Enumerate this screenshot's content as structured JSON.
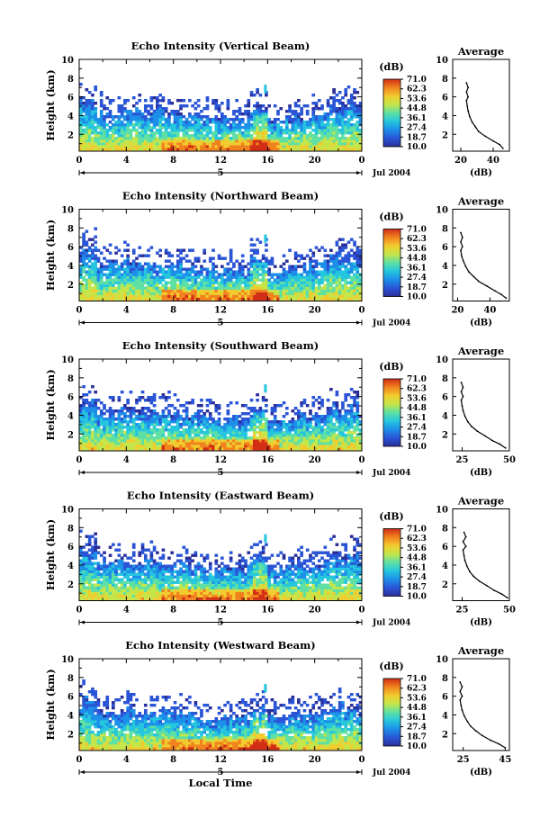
{
  "chart_data": [
    {
      "type": "heatmap",
      "title": "Echo Intensity (Vertical Beam)",
      "ylabel": "Height (km)",
      "xlabel": "",
      "x_ticks": [
        "0",
        "4",
        "8",
        "12",
        "16",
        "20",
        "0"
      ],
      "y_ticks": [
        "2",
        "4",
        "6",
        "8",
        "10"
      ],
      "xlim": [
        0,
        24
      ],
      "ylim": [
        0.2,
        10
      ],
      "day_marker": "5",
      "date_label": "Jul 2004",
      "colorbar": {
        "unit": "(dB)",
        "levels": [
          "71.0",
          "62.3",
          "53.6",
          "44.8",
          "36.1",
          "27.4",
          "18.7",
          "10.0"
        ]
      },
      "profile": {
        "title": "Average",
        "xlabel": "(dB)",
        "x_ticks": [
          "20",
          "40"
        ],
        "xlim": [
          15,
          50
        ],
        "y_ticks": [
          "2",
          "4",
          "6",
          "8",
          "10"
        ],
        "points": [
          [
            46,
            0.5
          ],
          [
            44,
            0.9
          ],
          [
            40,
            1.3
          ],
          [
            35,
            1.8
          ],
          [
            31,
            2.3
          ],
          [
            29,
            2.8
          ],
          [
            27,
            3.3
          ],
          [
            25.5,
            3.9
          ],
          [
            24.5,
            4.5
          ],
          [
            24,
            5.0
          ],
          [
            23.5,
            5.6
          ],
          [
            24.5,
            6.0
          ],
          [
            23.5,
            6.5
          ],
          [
            24.5,
            7.0
          ],
          [
            23.5,
            7.5
          ]
        ]
      }
    },
    {
      "type": "heatmap",
      "title": "Echo Intensity (Northward Beam)",
      "ylabel": "Height (km)",
      "xlabel": "",
      "x_ticks": [
        "0",
        "4",
        "8",
        "12",
        "16",
        "20",
        "0"
      ],
      "y_ticks": [
        "2",
        "4",
        "6",
        "8",
        "10"
      ],
      "xlim": [
        0,
        24
      ],
      "ylim": [
        0.2,
        10
      ],
      "day_marker": "5",
      "date_label": "Jul 2004",
      "colorbar": {
        "unit": "(dB)",
        "levels": [
          "71.0",
          "62.3",
          "53.6",
          "44.8",
          "36.1",
          "27.4",
          "18.7",
          "10.0"
        ]
      },
      "profile": {
        "title": "Average",
        "xlabel": "(dB)",
        "x_ticks": [
          "20",
          "40"
        ],
        "xlim": [
          17,
          52
        ],
        "y_ticks": [
          "2",
          "4",
          "6",
          "8",
          "10"
        ],
        "points": [
          [
            50,
            0.5
          ],
          [
            47,
            0.9
          ],
          [
            43,
            1.3
          ],
          [
            38,
            1.8
          ],
          [
            33,
            2.3
          ],
          [
            30,
            2.8
          ],
          [
            27,
            3.3
          ],
          [
            25,
            3.9
          ],
          [
            23.5,
            4.5
          ],
          [
            22.5,
            5.0
          ],
          [
            22,
            5.6
          ],
          [
            23,
            6.0
          ],
          [
            22,
            6.5
          ],
          [
            23,
            7.0
          ],
          [
            22,
            7.5
          ]
        ]
      }
    },
    {
      "type": "heatmap",
      "title": "Echo Intensity (Southward Beam)",
      "ylabel": "Height (km)",
      "xlabel": "",
      "x_ticks": [
        "0",
        "4",
        "8",
        "12",
        "16",
        "20",
        "0"
      ],
      "y_ticks": [
        "2",
        "4",
        "6",
        "8",
        "10"
      ],
      "xlim": [
        0,
        24
      ],
      "ylim": [
        0.2,
        10
      ],
      "day_marker": "5",
      "date_label": "Jul 2004",
      "colorbar": {
        "unit": "(dB)",
        "levels": [
          "71.0",
          "62.3",
          "53.6",
          "44.8",
          "36.1",
          "27.4",
          "18.7",
          "10.0"
        ]
      },
      "profile": {
        "title": "Average",
        "xlabel": "(dB)",
        "x_ticks": [
          "25",
          "50"
        ],
        "xlim": [
          20,
          50
        ],
        "y_ticks": [
          "2",
          "4",
          "6",
          "8",
          "10"
        ],
        "points": [
          [
            48,
            0.5
          ],
          [
            45,
            0.9
          ],
          [
            41,
            1.3
          ],
          [
            37,
            1.8
          ],
          [
            33,
            2.3
          ],
          [
            30,
            2.8
          ],
          [
            28,
            3.3
          ],
          [
            26.5,
            3.9
          ],
          [
            25.5,
            4.5
          ],
          [
            25,
            5.0
          ],
          [
            24.5,
            5.6
          ],
          [
            25.5,
            6.0
          ],
          [
            24.5,
            6.5
          ],
          [
            25.5,
            7.0
          ],
          [
            24.5,
            7.5
          ]
        ]
      }
    },
    {
      "type": "heatmap",
      "title": "Echo Intensity (Eastward Beam)",
      "ylabel": "Height (km)",
      "xlabel": "",
      "x_ticks": [
        "0",
        "4",
        "8",
        "12",
        "16",
        "20",
        "0"
      ],
      "y_ticks": [
        "2",
        "4",
        "6",
        "8",
        "10"
      ],
      "xlim": [
        0,
        24
      ],
      "ylim": [
        0.2,
        10
      ],
      "day_marker": "5",
      "date_label": "Jul 2004",
      "colorbar": {
        "unit": "(dB)",
        "levels": [
          "71.0",
          "62.3",
          "53.6",
          "44.8",
          "36.1",
          "27.4",
          "18.7",
          "10.0"
        ]
      },
      "profile": {
        "title": "Average",
        "xlabel": "(dB)",
        "x_ticks": [
          "25",
          "50"
        ],
        "xlim": [
          20,
          50
        ],
        "y_ticks": [
          "2",
          "4",
          "6",
          "8",
          "10"
        ],
        "points": [
          [
            49,
            0.5
          ],
          [
            46,
            0.9
          ],
          [
            42,
            1.3
          ],
          [
            38,
            1.8
          ],
          [
            34,
            2.3
          ],
          [
            31,
            2.8
          ],
          [
            29,
            3.3
          ],
          [
            27.5,
            3.9
          ],
          [
            26.5,
            4.5
          ],
          [
            26,
            5.0
          ],
          [
            25.5,
            5.6
          ],
          [
            27,
            6.0
          ],
          [
            25.5,
            6.5
          ],
          [
            27,
            7.0
          ],
          [
            26,
            7.5
          ]
        ]
      }
    },
    {
      "type": "heatmap",
      "title": "Echo Intensity (Westward Beam)",
      "ylabel": "Height (km)",
      "xlabel": "Local Time",
      "x_ticks": [
        "0",
        "4",
        "8",
        "12",
        "16",
        "20",
        "0"
      ],
      "y_ticks": [
        "2",
        "4",
        "6",
        "8",
        "10"
      ],
      "xlim": [
        0,
        24
      ],
      "ylim": [
        0.2,
        10
      ],
      "day_marker": "5",
      "date_label": "Jul 2004",
      "colorbar": {
        "unit": "(dB)",
        "levels": [
          "71.0",
          "62.3",
          "53.6",
          "44.8",
          "36.1",
          "27.4",
          "18.7",
          "10.0"
        ]
      },
      "profile": {
        "title": "Average",
        "xlabel": "(dB)",
        "x_ticks": [
          "25",
          "45"
        ],
        "xlim": [
          20,
          47
        ],
        "y_ticks": [
          "2",
          "4",
          "6",
          "8",
          "10"
        ],
        "points": [
          [
            45,
            0.5
          ],
          [
            42,
            0.9
          ],
          [
            38,
            1.3
          ],
          [
            34,
            1.8
          ],
          [
            31,
            2.3
          ],
          [
            28.5,
            2.8
          ],
          [
            27,
            3.3
          ],
          [
            25.5,
            3.9
          ],
          [
            24.5,
            4.5
          ],
          [
            24,
            5.0
          ],
          [
            23.5,
            5.6
          ],
          [
            24.5,
            6.0
          ],
          [
            23.5,
            6.5
          ],
          [
            24.5,
            7.0
          ],
          [
            23.5,
            7.5
          ]
        ]
      }
    }
  ],
  "colors": {
    "colormap": [
      "#2b2f99",
      "#2a55d6",
      "#1d8fe8",
      "#25c6de",
      "#5fe0a4",
      "#c4e64a",
      "#f2cc2f",
      "#f1831f",
      "#d22e16"
    ],
    "axis": "#000000",
    "background": "#ffffff"
  }
}
